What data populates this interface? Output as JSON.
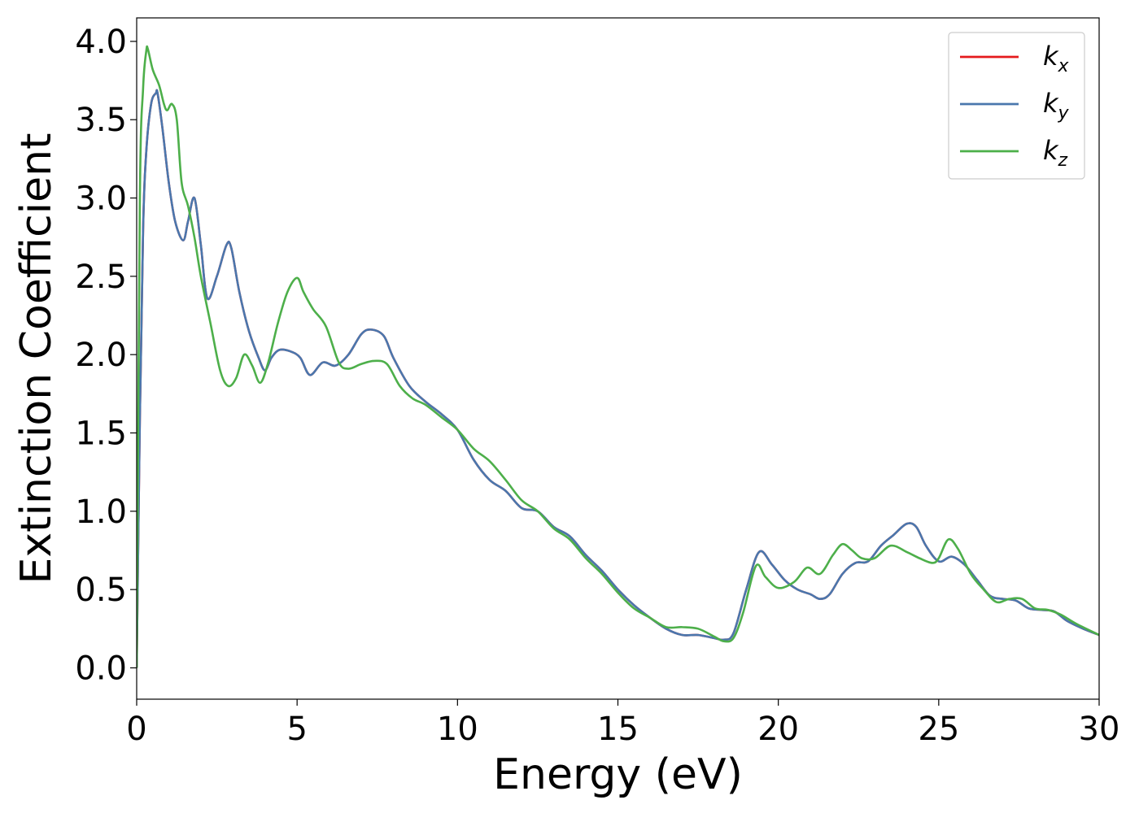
{
  "chart_data": {
    "type": "line",
    "title": "",
    "xlabel": "Energy (eV)",
    "ylabel": "Extinction Coefficient",
    "xlim": [
      0,
      30
    ],
    "ylim": [
      -0.2,
      4.15
    ],
    "xticks": [
      0,
      5,
      10,
      15,
      20,
      25,
      30
    ],
    "xtick_labels": [
      "0",
      "5",
      "10",
      "15",
      "20",
      "25",
      "30"
    ],
    "yticks": [
      0.0,
      0.5,
      1.0,
      1.5,
      2.0,
      2.5,
      3.0,
      3.5,
      4.0
    ],
    "ytick_labels": [
      "0.0",
      "0.5",
      "1.0",
      "1.5",
      "2.0",
      "2.5",
      "3.0",
      "3.5",
      "4.0"
    ],
    "grid": false,
    "legend": {
      "placement": "top-right"
    },
    "series": [
      {
        "name": "k_x",
        "label_base": "k",
        "label_sub": "x",
        "color": "#e41a1c",
        "x": [
          0,
          0.1,
          0.2,
          0.3,
          0.45,
          0.6,
          0.65,
          0.8,
          1.0,
          1.2,
          1.45,
          1.6,
          1.8,
          2.0,
          2.2,
          2.5,
          2.8,
          2.95,
          3.2,
          3.5,
          3.8,
          4.0,
          4.2,
          4.45,
          4.8,
          5.1,
          5.4,
          5.8,
          6.2,
          6.6,
          7.0,
          7.3,
          7.7,
          8.0,
          8.5,
          9.0,
          9.5,
          10.0,
          10.5,
          11.0,
          11.5,
          12.0,
          12.5,
          13.0,
          13.5,
          14.0,
          14.5,
          15.0,
          15.5,
          16.0,
          16.5,
          17.0,
          17.5,
          18.0,
          18.3,
          18.6,
          19.0,
          19.4,
          19.8,
          20.2,
          20.6,
          21.0,
          21.3,
          21.6,
          22.0,
          22.4,
          22.8,
          23.2,
          23.6,
          24.0,
          24.3,
          24.6,
          25.0,
          25.4,
          25.8,
          26.2,
          26.6,
          27.0,
          27.4,
          27.8,
          28.2,
          28.6,
          29.0,
          29.5,
          30.0
        ],
        "y": [
          0.0,
          1.6,
          2.8,
          3.3,
          3.6,
          3.67,
          3.67,
          3.45,
          3.1,
          2.85,
          2.73,
          2.85,
          3.0,
          2.7,
          2.36,
          2.5,
          2.7,
          2.68,
          2.4,
          2.15,
          1.98,
          1.9,
          1.98,
          2.03,
          2.02,
          1.98,
          1.87,
          1.95,
          1.93,
          2.0,
          2.13,
          2.16,
          2.12,
          1.98,
          1.8,
          1.7,
          1.62,
          1.52,
          1.33,
          1.2,
          1.13,
          1.02,
          1.0,
          0.9,
          0.84,
          0.72,
          0.62,
          0.5,
          0.4,
          0.32,
          0.25,
          0.21,
          0.21,
          0.19,
          0.18,
          0.22,
          0.5,
          0.74,
          0.66,
          0.56,
          0.5,
          0.47,
          0.44,
          0.47,
          0.6,
          0.67,
          0.68,
          0.78,
          0.85,
          0.92,
          0.9,
          0.78,
          0.68,
          0.71,
          0.66,
          0.56,
          0.46,
          0.44,
          0.43,
          0.38,
          0.37,
          0.36,
          0.3,
          0.25,
          0.21
        ]
      },
      {
        "name": "k_y",
        "label_base": "k",
        "label_sub": "y",
        "color": "#4a77ad",
        "x": [
          0,
          0.1,
          0.2,
          0.3,
          0.45,
          0.6,
          0.65,
          0.8,
          1.0,
          1.2,
          1.45,
          1.6,
          1.8,
          2.0,
          2.2,
          2.5,
          2.8,
          2.95,
          3.2,
          3.5,
          3.8,
          4.0,
          4.2,
          4.45,
          4.8,
          5.1,
          5.4,
          5.8,
          6.2,
          6.6,
          7.0,
          7.3,
          7.7,
          8.0,
          8.5,
          9.0,
          9.5,
          10.0,
          10.5,
          11.0,
          11.5,
          12.0,
          12.5,
          13.0,
          13.5,
          14.0,
          14.5,
          15.0,
          15.5,
          16.0,
          16.5,
          17.0,
          17.5,
          18.0,
          18.3,
          18.6,
          19.0,
          19.4,
          19.8,
          20.2,
          20.6,
          21.0,
          21.3,
          21.6,
          22.0,
          22.4,
          22.8,
          23.2,
          23.6,
          24.0,
          24.3,
          24.6,
          25.0,
          25.4,
          25.8,
          26.2,
          26.6,
          27.0,
          27.4,
          27.8,
          28.2,
          28.6,
          29.0,
          29.5,
          30.0
        ],
        "y": [
          0.0,
          1.6,
          2.8,
          3.3,
          3.6,
          3.67,
          3.67,
          3.45,
          3.1,
          2.85,
          2.73,
          2.85,
          3.0,
          2.7,
          2.36,
          2.5,
          2.7,
          2.68,
          2.4,
          2.15,
          1.98,
          1.9,
          1.98,
          2.03,
          2.02,
          1.98,
          1.87,
          1.95,
          1.93,
          2.0,
          2.13,
          2.16,
          2.12,
          1.98,
          1.8,
          1.7,
          1.62,
          1.52,
          1.33,
          1.2,
          1.13,
          1.02,
          1.0,
          0.9,
          0.84,
          0.72,
          0.62,
          0.5,
          0.4,
          0.32,
          0.25,
          0.21,
          0.21,
          0.19,
          0.18,
          0.22,
          0.5,
          0.74,
          0.66,
          0.56,
          0.5,
          0.47,
          0.44,
          0.47,
          0.6,
          0.67,
          0.68,
          0.78,
          0.85,
          0.92,
          0.9,
          0.78,
          0.68,
          0.71,
          0.66,
          0.56,
          0.46,
          0.44,
          0.43,
          0.38,
          0.37,
          0.36,
          0.3,
          0.25,
          0.21
        ]
      },
      {
        "name": "k_z",
        "label_base": "k",
        "label_sub": "z",
        "color": "#4daf4a",
        "x": [
          0,
          0.1,
          0.2,
          0.3,
          0.35,
          0.5,
          0.7,
          0.85,
          0.95,
          1.1,
          1.25,
          1.4,
          1.6,
          1.8,
          2.0,
          2.3,
          2.6,
          2.85,
          3.1,
          3.35,
          3.6,
          3.85,
          4.1,
          4.4,
          4.7,
          5.0,
          5.2,
          5.5,
          5.9,
          6.3,
          6.6,
          7.0,
          7.4,
          7.8,
          8.2,
          8.6,
          9.0,
          9.5,
          10.0,
          10.5,
          11.0,
          11.5,
          12.0,
          12.5,
          13.0,
          13.5,
          14.0,
          14.5,
          15.0,
          15.5,
          16.0,
          16.5,
          17.0,
          17.5,
          18.0,
          18.3,
          18.6,
          18.9,
          19.3,
          19.6,
          20.0,
          20.5,
          20.9,
          21.3,
          21.7,
          22.0,
          22.3,
          22.6,
          23.0,
          23.5,
          24.0,
          24.4,
          24.8,
          25.0,
          25.3,
          25.6,
          26.0,
          26.4,
          26.8,
          27.2,
          27.6,
          28.0,
          28.4,
          28.8,
          29.3,
          30.0
        ],
        "y": [
          0.0,
          3.0,
          3.7,
          3.94,
          3.95,
          3.82,
          3.72,
          3.6,
          3.56,
          3.6,
          3.5,
          3.1,
          2.95,
          2.75,
          2.5,
          2.2,
          1.9,
          1.8,
          1.85,
          2.0,
          1.93,
          1.82,
          1.95,
          2.2,
          2.4,
          2.49,
          2.4,
          2.29,
          2.18,
          1.95,
          1.91,
          1.94,
          1.96,
          1.94,
          1.8,
          1.72,
          1.68,
          1.6,
          1.52,
          1.4,
          1.32,
          1.2,
          1.07,
          1.0,
          0.89,
          0.82,
          0.7,
          0.6,
          0.48,
          0.38,
          0.32,
          0.26,
          0.26,
          0.25,
          0.2,
          0.17,
          0.19,
          0.35,
          0.65,
          0.58,
          0.51,
          0.55,
          0.64,
          0.6,
          0.72,
          0.79,
          0.75,
          0.7,
          0.7,
          0.78,
          0.74,
          0.7,
          0.67,
          0.7,
          0.82,
          0.76,
          0.6,
          0.5,
          0.42,
          0.44,
          0.44,
          0.38,
          0.37,
          0.34,
          0.28,
          0.21
        ]
      }
    ]
  }
}
